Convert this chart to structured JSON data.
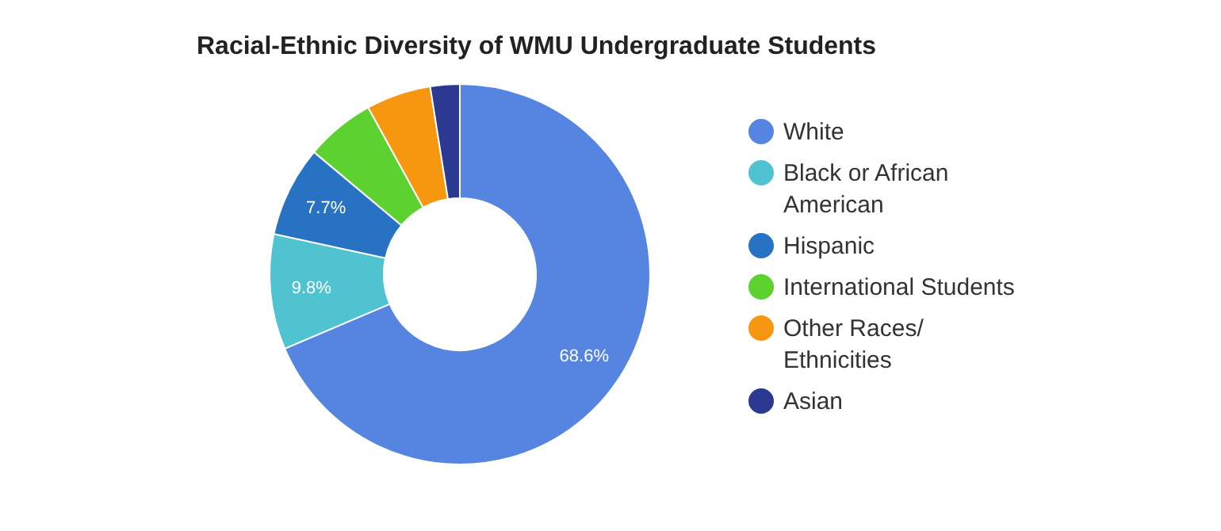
{
  "chart_data": {
    "type": "donut",
    "title": "Racial-Ethnic Diversity of WMU Undergraduate Students",
    "categories": [
      "White",
      "Black or African American",
      "Hispanic",
      "International Students",
      "Other Races/ Ethnicities",
      "Asian"
    ],
    "values": [
      68.6,
      9.8,
      7.7,
      5.9,
      5.5,
      2.5
    ],
    "colors": [
      "#5585e0",
      "#4fc3d0",
      "#2872c4",
      "#5cd12f",
      "#f7960f",
      "#2b3990"
    ],
    "value_labels": [
      "68.6%",
      "9.8%",
      "7.7%",
      null,
      null,
      null
    ],
    "legend": "right"
  }
}
